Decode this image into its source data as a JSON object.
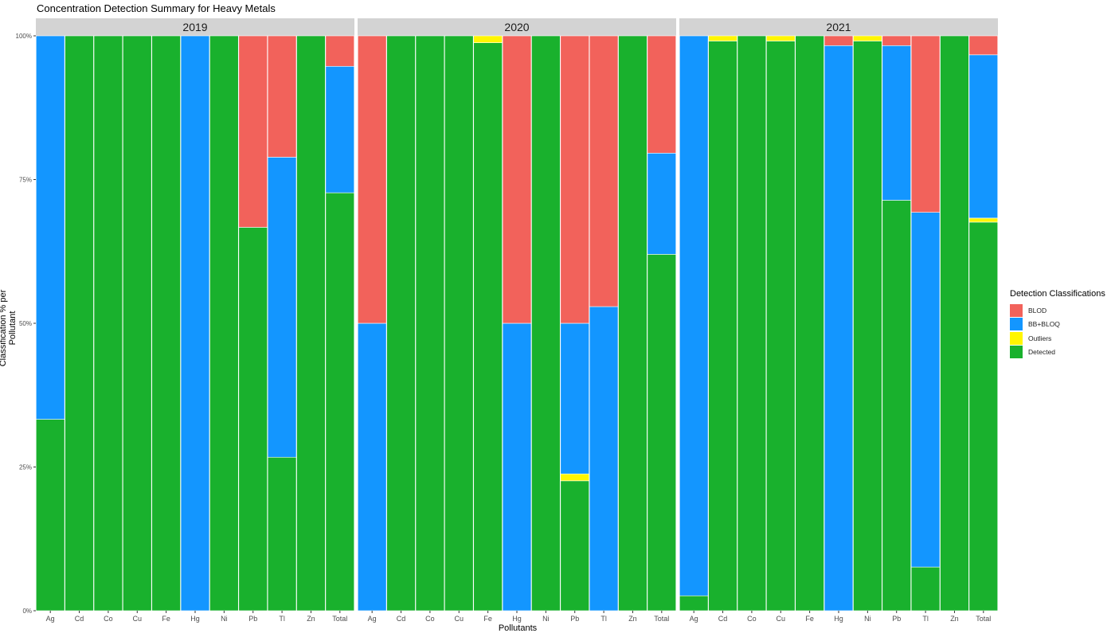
{
  "chart_data": {
    "type": "bar",
    "stacked": true,
    "title": "Concentration Detection Summary for Heavy Metals",
    "xlabel": "Pollutants",
    "ylabel": "Classification % per Pollutant",
    "ylim": [
      0,
      100
    ],
    "y_ticks": [
      "0%",
      "25%",
      "50%",
      "75%",
      "100%"
    ],
    "categories": [
      "Ag",
      "Cd",
      "Co",
      "Cu",
      "Fe",
      "Hg",
      "Ni",
      "Pb",
      "Tl",
      "Zn",
      "Total"
    ],
    "legend": {
      "title": "Detection Classifications",
      "position": "right",
      "entries": [
        "BLOD",
        "BB+BLOQ",
        "Outliers",
        "Detected"
      ]
    },
    "colors": {
      "BLOD": "#F2625B",
      "BB+BLOQ": "#1396FF",
      "Outliers": "#FFF600",
      "Detected": "#19B12D",
      "strip": "#D3D3D3"
    },
    "panels": [
      {
        "label": "2019",
        "series": [
          {
            "name": "Detected",
            "values": [
              33.3,
              100,
              100,
              100,
              100,
              0,
              100,
              66.7,
              26.7,
              100,
              72.7
            ]
          },
          {
            "name": "Outliers",
            "values": [
              0,
              0,
              0,
              0,
              0,
              0,
              0,
              0,
              0,
              0,
              0
            ]
          },
          {
            "name": "BB+BLOQ",
            "values": [
              66.7,
              0,
              0,
              0,
              0,
              100,
              0,
              0,
              52.2,
              0,
              22.0
            ]
          },
          {
            "name": "BLOD",
            "values": [
              0,
              0,
              0,
              0,
              0,
              0,
              0,
              33.3,
              21.1,
              0,
              5.3
            ]
          }
        ]
      },
      {
        "label": "2020",
        "series": [
          {
            "name": "Detected",
            "values": [
              0,
              100,
              100,
              100,
              98.8,
              0,
              100,
              22.6,
              0,
              100,
              62.0
            ]
          },
          {
            "name": "Outliers",
            "values": [
              0,
              0,
              0,
              0,
              1.2,
              0,
              0,
              1.2,
              0,
              0,
              0
            ]
          },
          {
            "name": "BB+BLOQ",
            "values": [
              50,
              0,
              0,
              0,
              0,
              50,
              0,
              26.2,
              52.9,
              0,
              17.6
            ]
          },
          {
            "name": "BLOD",
            "values": [
              50,
              0,
              0,
              0,
              0,
              50,
              0,
              50,
              47.1,
              0,
              20.4
            ]
          }
        ]
      },
      {
        "label": "2021",
        "series": [
          {
            "name": "Detected",
            "values": [
              2.6,
              99.1,
              100,
              99.1,
              100,
              0,
              99.1,
              71.4,
              7.6,
              100,
              67.6
            ]
          },
          {
            "name": "Outliers",
            "values": [
              0,
              0.9,
              0,
              0.9,
              0,
              0,
              0.9,
              0,
              0,
              0,
              0.7
            ]
          },
          {
            "name": "BB+BLOQ",
            "values": [
              97.4,
              0,
              0,
              0,
              0,
              98.3,
              0,
              26.9,
              61.7,
              0,
              28.4
            ]
          },
          {
            "name": "BLOD",
            "values": [
              0,
              0,
              0,
              0,
              0,
              1.7,
              0,
              1.7,
              30.7,
              0,
              3.3
            ]
          }
        ]
      }
    ]
  }
}
